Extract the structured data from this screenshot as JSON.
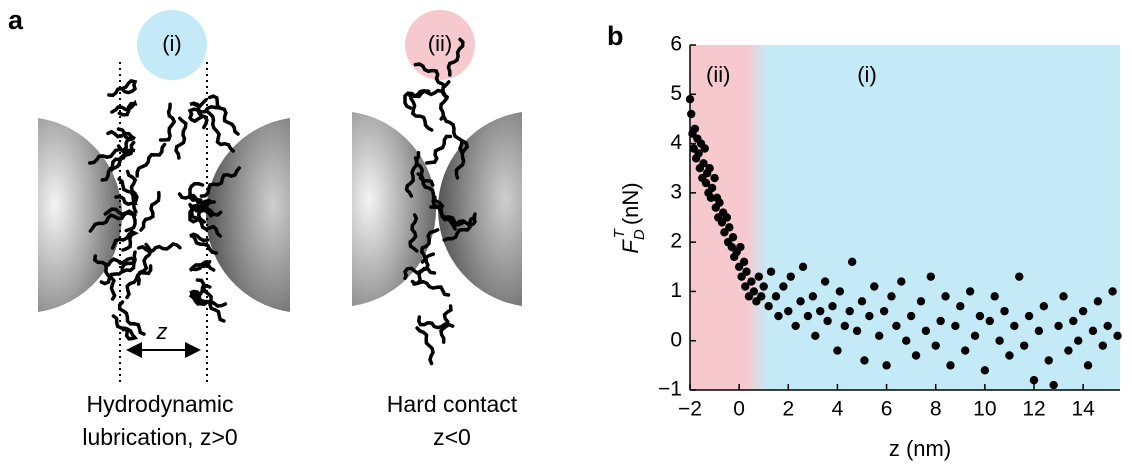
{
  "panel_a": {
    "label": "a",
    "left": {
      "badge": "(i)",
      "gap_label": "z",
      "caption_line1": "Hydrodynamic",
      "caption_line2": "lubrication, z>0"
    },
    "right": {
      "badge": "(ii)",
      "caption_line1": "Hard contact",
      "caption_line2": "z<0"
    }
  },
  "chart_data": {
    "type": "scatter",
    "panel_label": "b",
    "x_label": "z (nm)",
    "y_label": {
      "symbol": "F",
      "superscript": "T",
      "subscript": "D",
      "unit": "(nN)"
    },
    "regions": [
      {
        "label": "(ii)",
        "from": -2,
        "to": 0.3,
        "color": "#f6c9cf"
      },
      {
        "label": "(i)",
        "from": 1.2,
        "to": 15.5,
        "color": "#c5eaf7"
      }
    ],
    "color": "#000000",
    "xlim": [
      -2,
      15.5
    ],
    "ylim": [
      -1,
      6
    ],
    "xticks": [
      {
        "value": -2,
        "label": "−2"
      },
      0,
      2,
      4,
      6,
      8,
      10,
      12,
      14
    ],
    "yticks": [
      {
        "value": -1,
        "label": "−1"
      },
      0,
      1,
      2,
      3,
      4,
      5,
      6
    ],
    "x": [
      -2.0,
      -1.95,
      -1.9,
      -1.85,
      -1.8,
      -1.75,
      -1.7,
      -1.65,
      -1.6,
      -1.55,
      -1.5,
      -1.45,
      -1.4,
      -1.35,
      -1.3,
      -1.25,
      -1.2,
      -1.15,
      -1.1,
      -1.0,
      -0.95,
      -0.9,
      -0.85,
      -0.8,
      -0.7,
      -0.65,
      -0.6,
      -0.5,
      -0.45,
      -0.4,
      -0.3,
      -0.25,
      -0.2,
      -0.1,
      0.0,
      0.05,
      0.1,
      0.2,
      0.25,
      0.3,
      0.4,
      0.5,
      0.6,
      0.7,
      0.8,
      0.9,
      1.0,
      1.2,
      1.3,
      1.5,
      1.6,
      1.8,
      2.0,
      2.1,
      2.3,
      2.5,
      2.6,
      2.8,
      3.0,
      3.1,
      3.3,
      3.5,
      3.6,
      3.8,
      4.0,
      4.1,
      4.3,
      4.5,
      4.6,
      4.8,
      5.0,
      5.1,
      5.3,
      5.5,
      5.7,
      5.9,
      6.0,
      6.2,
      6.4,
      6.6,
      6.8,
      7.0,
      7.2,
      7.4,
      7.6,
      7.8,
      8.0,
      8.2,
      8.4,
      8.6,
      8.8,
      9.0,
      9.2,
      9.4,
      9.6,
      9.8,
      10.0,
      10.2,
      10.4,
      10.6,
      10.8,
      11.0,
      11.2,
      11.4,
      11.6,
      11.8,
      12.0,
      12.2,
      12.4,
      12.6,
      12.8,
      13.0,
      13.2,
      13.4,
      13.6,
      13.8,
      14.0,
      14.2,
      14.4,
      14.6,
      14.8,
      15.0,
      15.2,
      15.4
    ],
    "values": [
      4.9,
      4.6,
      4.2,
      3.9,
      4.3,
      3.7,
      4.1,
      3.8,
      3.5,
      4.0,
      3.3,
      3.6,
      3.9,
      3.2,
      3.4,
      3.0,
      3.5,
      2.9,
      3.1,
      3.3,
      2.7,
      2.9,
      2.5,
      2.8,
      2.4,
      2.6,
      2.2,
      2.5,
      2.0,
      2.3,
      1.9,
      2.1,
      1.7,
      1.8,
      1.5,
      1.9,
      1.3,
      1.6,
      1.1,
      1.4,
      0.9,
      1.2,
      1.0,
      0.8,
      1.3,
      0.9,
      1.1,
      0.7,
      1.4,
      0.9,
      0.5,
      1.1,
      0.6,
      1.3,
      0.3,
      0.8,
      1.5,
      0.5,
      0.9,
      0.1,
      0.6,
      1.2,
      0.4,
      0.7,
      -0.2,
      1.0,
      0.3,
      0.6,
      1.6,
      0.2,
      0.8,
      -0.4,
      0.5,
      1.1,
      0.1,
      0.6,
      -0.5,
      0.9,
      0.3,
      1.2,
      0.0,
      0.5,
      -0.3,
      0.8,
      0.2,
      1.3,
      -0.1,
      0.4,
      0.9,
      -0.5,
      0.3,
      0.7,
      -0.2,
      1.0,
      0.1,
      0.5,
      -0.6,
      0.4,
      0.9,
      0.0,
      0.6,
      -0.3,
      0.3,
      1.3,
      -0.1,
      0.5,
      -0.8,
      0.2,
      0.7,
      -0.4,
      -0.9,
      0.3,
      0.9,
      -0.2,
      0.4,
      0.0,
      0.6,
      -0.5,
      0.2,
      0.8,
      -0.1,
      0.3,
      1.0,
      0.1
    ]
  }
}
